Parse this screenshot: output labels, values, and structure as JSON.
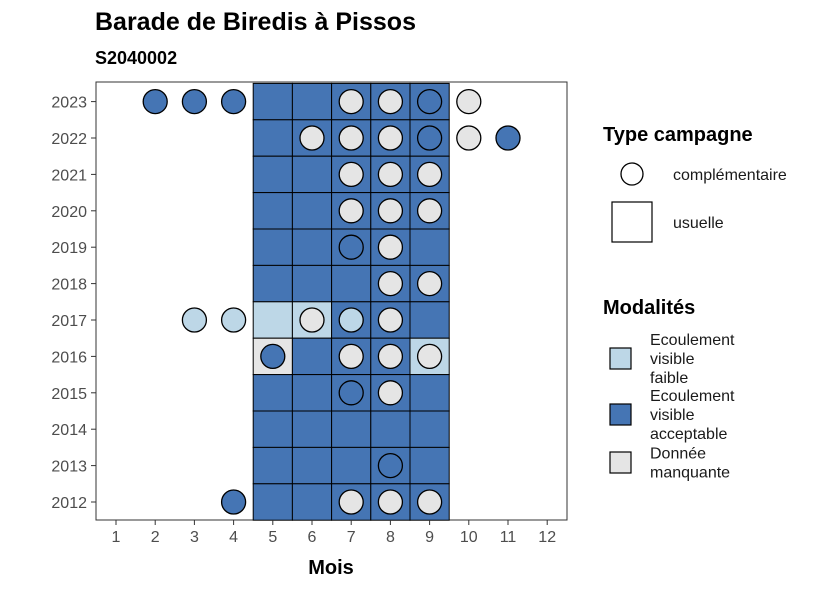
{
  "chart_data": {
    "type": "heatmap",
    "title": "Barade de Biredis à Pissos",
    "subtitle": "S2040002",
    "xlabel": "Mois",
    "ylabel": "",
    "x_ticks": [
      "1",
      "2",
      "3",
      "4",
      "5",
      "6",
      "7",
      "8",
      "9",
      "10",
      "11",
      "12"
    ],
    "y_ticks": [
      "2023",
      "2022",
      "2021",
      "2020",
      "2019",
      "2018",
      "2017",
      "2016",
      "2015",
      "2014",
      "2013",
      "2012"
    ],
    "x_range": [
      1,
      12
    ],
    "y_range": [
      2012,
      2023
    ],
    "colors": {
      "Ecoulement visible faible": "#bdd7e7",
      "Ecoulement visible acceptable": "#4575b4",
      "Donnée manquante": "#e5e5e5"
    },
    "legend_type": {
      "title": "Type campagne",
      "items": [
        {
          "label": "complémentaire",
          "shape": "circle"
        },
        {
          "label": "usuelle",
          "shape": "square"
        }
      ]
    },
    "legend_modalites": {
      "title": "Modalités",
      "items": [
        {
          "lines": [
            "Ecoulement",
            "visible",
            "faible"
          ],
          "color": "#bdd7e7"
        },
        {
          "lines": [
            "Ecoulement",
            "visible",
            "acceptable"
          ],
          "color": "#4575b4"
        },
        {
          "lines": [
            "Donnée",
            "manquante"
          ],
          "color": "#e5e5e5"
        }
      ]
    },
    "usuelle": [
      {
        "year": 2023,
        "month": 5,
        "value": "Ecoulement visible acceptable"
      },
      {
        "year": 2023,
        "month": 6,
        "value": "Ecoulement visible acceptable"
      },
      {
        "year": 2023,
        "month": 7,
        "value": "Ecoulement visible acceptable"
      },
      {
        "year": 2023,
        "month": 8,
        "value": "Ecoulement visible acceptable"
      },
      {
        "year": 2023,
        "month": 9,
        "value": "Ecoulement visible acceptable"
      },
      {
        "year": 2022,
        "month": 5,
        "value": "Ecoulement visible acceptable"
      },
      {
        "year": 2022,
        "month": 6,
        "value": "Ecoulement visible acceptable"
      },
      {
        "year": 2022,
        "month": 7,
        "value": "Ecoulement visible acceptable"
      },
      {
        "year": 2022,
        "month": 8,
        "value": "Ecoulement visible acceptable"
      },
      {
        "year": 2022,
        "month": 9,
        "value": "Ecoulement visible acceptable"
      },
      {
        "year": 2021,
        "month": 5,
        "value": "Ecoulement visible acceptable"
      },
      {
        "year": 2021,
        "month": 6,
        "value": "Ecoulement visible acceptable"
      },
      {
        "year": 2021,
        "month": 7,
        "value": "Ecoulement visible acceptable"
      },
      {
        "year": 2021,
        "month": 8,
        "value": "Ecoulement visible acceptable"
      },
      {
        "year": 2021,
        "month": 9,
        "value": "Ecoulement visible acceptable"
      },
      {
        "year": 2020,
        "month": 5,
        "value": "Ecoulement visible acceptable"
      },
      {
        "year": 2020,
        "month": 6,
        "value": "Ecoulement visible acceptable"
      },
      {
        "year": 2020,
        "month": 7,
        "value": "Ecoulement visible acceptable"
      },
      {
        "year": 2020,
        "month": 8,
        "value": "Ecoulement visible acceptable"
      },
      {
        "year": 2020,
        "month": 9,
        "value": "Ecoulement visible acceptable"
      },
      {
        "year": 2019,
        "month": 5,
        "value": "Ecoulement visible acceptable"
      },
      {
        "year": 2019,
        "month": 6,
        "value": "Ecoulement visible acceptable"
      },
      {
        "year": 2019,
        "month": 7,
        "value": "Ecoulement visible acceptable"
      },
      {
        "year": 2019,
        "month": 8,
        "value": "Ecoulement visible acceptable"
      },
      {
        "year": 2019,
        "month": 9,
        "value": "Ecoulement visible acceptable"
      },
      {
        "year": 2018,
        "month": 5,
        "value": "Ecoulement visible acceptable"
      },
      {
        "year": 2018,
        "month": 6,
        "value": "Ecoulement visible acceptable"
      },
      {
        "year": 2018,
        "month": 7,
        "value": "Ecoulement visible acceptable"
      },
      {
        "year": 2018,
        "month": 8,
        "value": "Ecoulement visible acceptable"
      },
      {
        "year": 2018,
        "month": 9,
        "value": "Ecoulement visible acceptable"
      },
      {
        "year": 2017,
        "month": 5,
        "value": "Ecoulement visible faible"
      },
      {
        "year": 2017,
        "month": 6,
        "value": "Ecoulement visible faible"
      },
      {
        "year": 2017,
        "month": 7,
        "value": "Ecoulement visible acceptable"
      },
      {
        "year": 2017,
        "month": 8,
        "value": "Ecoulement visible acceptable"
      },
      {
        "year": 2017,
        "month": 9,
        "value": "Ecoulement visible acceptable"
      },
      {
        "year": 2016,
        "month": 5,
        "value": "Donnée manquante"
      },
      {
        "year": 2016,
        "month": 6,
        "value": "Ecoulement visible acceptable"
      },
      {
        "year": 2016,
        "month": 7,
        "value": "Ecoulement visible acceptable"
      },
      {
        "year": 2016,
        "month": 8,
        "value": "Ecoulement visible acceptable"
      },
      {
        "year": 2016,
        "month": 9,
        "value": "Ecoulement visible faible"
      },
      {
        "year": 2015,
        "month": 5,
        "value": "Ecoulement visible acceptable"
      },
      {
        "year": 2015,
        "month": 6,
        "value": "Ecoulement visible acceptable"
      },
      {
        "year": 2015,
        "month": 7,
        "value": "Ecoulement visible acceptable"
      },
      {
        "year": 2015,
        "month": 8,
        "value": "Ecoulement visible acceptable"
      },
      {
        "year": 2015,
        "month": 9,
        "value": "Ecoulement visible acceptable"
      },
      {
        "year": 2014,
        "month": 5,
        "value": "Ecoulement visible acceptable"
      },
      {
        "year": 2014,
        "month": 6,
        "value": "Ecoulement visible acceptable"
      },
      {
        "year": 2014,
        "month": 7,
        "value": "Ecoulement visible acceptable"
      },
      {
        "year": 2014,
        "month": 8,
        "value": "Ecoulement visible acceptable"
      },
      {
        "year": 2014,
        "month": 9,
        "value": "Ecoulement visible acceptable"
      },
      {
        "year": 2013,
        "month": 5,
        "value": "Ecoulement visible acceptable"
      },
      {
        "year": 2013,
        "month": 6,
        "value": "Ecoulement visible acceptable"
      },
      {
        "year": 2013,
        "month": 7,
        "value": "Ecoulement visible acceptable"
      },
      {
        "year": 2013,
        "month": 8,
        "value": "Ecoulement visible acceptable"
      },
      {
        "year": 2013,
        "month": 9,
        "value": "Ecoulement visible acceptable"
      },
      {
        "year": 2012,
        "month": 5,
        "value": "Ecoulement visible acceptable"
      },
      {
        "year": 2012,
        "month": 6,
        "value": "Ecoulement visible acceptable"
      },
      {
        "year": 2012,
        "month": 7,
        "value": "Ecoulement visible acceptable"
      },
      {
        "year": 2012,
        "month": 8,
        "value": "Ecoulement visible acceptable"
      },
      {
        "year": 2012,
        "month": 9,
        "value": "Ecoulement visible acceptable"
      }
    ],
    "complementaire": [
      {
        "year": 2023,
        "month": 2,
        "value": "Ecoulement visible acceptable"
      },
      {
        "year": 2023,
        "month": 3,
        "value": "Ecoulement visible acceptable"
      },
      {
        "year": 2023,
        "month": 4,
        "value": "Ecoulement visible acceptable"
      },
      {
        "year": 2023,
        "month": 7,
        "value": "Donnée manquante"
      },
      {
        "year": 2023,
        "month": 8,
        "value": "Donnée manquante"
      },
      {
        "year": 2023,
        "month": 9,
        "value": "Ecoulement visible acceptable"
      },
      {
        "year": 2023,
        "month": 10,
        "value": "Donnée manquante"
      },
      {
        "year": 2022,
        "month": 6,
        "value": "Donnée manquante"
      },
      {
        "year": 2022,
        "month": 7,
        "value": "Donnée manquante"
      },
      {
        "year": 2022,
        "month": 8,
        "value": "Donnée manquante"
      },
      {
        "year": 2022,
        "month": 9,
        "value": "Ecoulement visible acceptable"
      },
      {
        "year": 2022,
        "month": 10,
        "value": "Donnée manquante"
      },
      {
        "year": 2022,
        "month": 11,
        "value": "Ecoulement visible acceptable"
      },
      {
        "year": 2021,
        "month": 7,
        "value": "Donnée manquante"
      },
      {
        "year": 2021,
        "month": 8,
        "value": "Donnée manquante"
      },
      {
        "year": 2021,
        "month": 9,
        "value": "Donnée manquante"
      },
      {
        "year": 2020,
        "month": 7,
        "value": "Donnée manquante"
      },
      {
        "year": 2020,
        "month": 8,
        "value": "Donnée manquante"
      },
      {
        "year": 2020,
        "month": 9,
        "value": "Donnée manquante"
      },
      {
        "year": 2019,
        "month": 7,
        "value": "Ecoulement visible acceptable"
      },
      {
        "year": 2019,
        "month": 8,
        "value": "Donnée manquante"
      },
      {
        "year": 2018,
        "month": 8,
        "value": "Donnée manquante"
      },
      {
        "year": 2018,
        "month": 9,
        "value": "Donnée manquante"
      },
      {
        "year": 2017,
        "month": 3,
        "value": "Ecoulement visible faible"
      },
      {
        "year": 2017,
        "month": 4,
        "value": "Ecoulement visible faible"
      },
      {
        "year": 2017,
        "month": 6,
        "value": "Donnée manquante"
      },
      {
        "year": 2017,
        "month": 7,
        "value": "Ecoulement visible faible"
      },
      {
        "year": 2017,
        "month": 8,
        "value": "Donnée manquante"
      },
      {
        "year": 2016,
        "month": 5,
        "value": "Ecoulement visible acceptable"
      },
      {
        "year": 2016,
        "month": 7,
        "value": "Donnée manquante"
      },
      {
        "year": 2016,
        "month": 8,
        "value": "Donnée manquante"
      },
      {
        "year": 2016,
        "month": 9,
        "value": "Donnée manquante"
      },
      {
        "year": 2015,
        "month": 7,
        "value": "Ecoulement visible acceptable"
      },
      {
        "year": 2015,
        "month": 8,
        "value": "Donnée manquante"
      },
      {
        "year": 2013,
        "month": 8,
        "value": "Ecoulement visible acceptable"
      },
      {
        "year": 2012,
        "month": 4,
        "value": "Ecoulement visible acceptable"
      },
      {
        "year": 2012,
        "month": 7,
        "value": "Donnée manquante"
      },
      {
        "year": 2012,
        "month": 8,
        "value": "Donnée manquante"
      },
      {
        "year": 2012,
        "month": 9,
        "value": "Donnée manquante"
      }
    ]
  }
}
